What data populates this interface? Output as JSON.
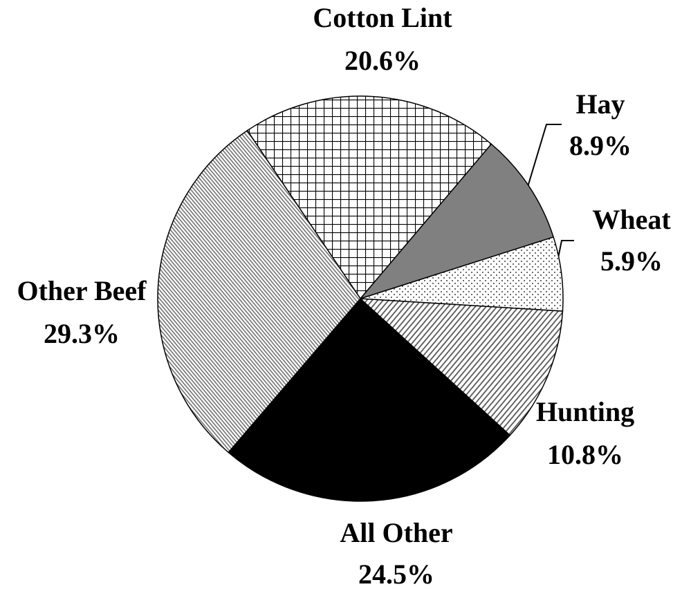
{
  "chart_data": {
    "type": "pie",
    "categories": [
      "Cotton Lint",
      "Hay",
      "Wheat",
      "Hunting",
      "All Other",
      "Other Beef"
    ],
    "values": [
      20.6,
      8.9,
      5.9,
      10.8,
      24.5,
      29.3
    ],
    "value_labels": [
      "20.6%",
      "8.9%",
      "5.9%",
      "10.8%",
      "24.5%",
      "29.3%"
    ]
  }
}
